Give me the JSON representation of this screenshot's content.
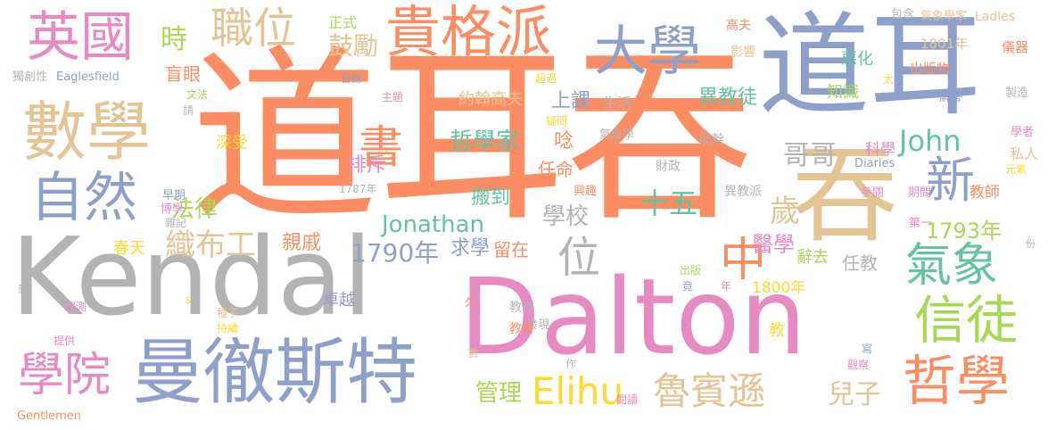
{
  "title": "word cloud",
  "palette": {
    "orange": "#fc8d62",
    "blue": "#8da0cb",
    "pink": "#e78ac3",
    "green": "#66c2a5",
    "yellow": "#ffd92f",
    "tan": "#e5c494",
    "gray": "#b3b3b3",
    "lime": "#a6d854"
  },
  "words": [
    {
      "text": "道耳吞",
      "color": "#fc8d62"
    },
    {
      "text": "道耳",
      "color": "#8da0cb"
    },
    {
      "text": "Kendal",
      "color": "#b3b3b3"
    },
    {
      "text": "Dalton",
      "color": "#e78ac3"
    },
    {
      "text": "吞",
      "color": "#e5c494"
    },
    {
      "text": "曼徹斯特",
      "color": "#8da0cb"
    },
    {
      "text": "數學",
      "color": "#e5c494"
    },
    {
      "text": "貴格派",
      "color": "#fc8d62"
    },
    {
      "text": "英國",
      "color": "#e78ac3"
    },
    {
      "text": "大學",
      "color": "#8da0cb"
    },
    {
      "text": "自然",
      "color": "#8da0cb"
    },
    {
      "text": "職位",
      "color": "#e5c494"
    },
    {
      "text": "信徒",
      "color": "#a6d854"
    },
    {
      "text": "哲學",
      "color": "#fc8d62"
    },
    {
      "text": "學院",
      "color": "#e78ac3"
    },
    {
      "text": "氣象",
      "color": "#66c2a5"
    },
    {
      "text": "新",
      "color": "#8da0cb"
    },
    {
      "text": "Elihu",
      "color": "#ffd92f"
    },
    {
      "text": "魯賓遜",
      "color": "#e5c494"
    },
    {
      "text": "中",
      "color": "#fc8d62"
    },
    {
      "text": "位",
      "color": "#b3b3b3"
    },
    {
      "text": "書",
      "color": "#fc8d62"
    },
    {
      "text": "John",
      "color": "#66c2a5"
    },
    {
      "text": "十五",
      "color": "#66c2a5"
    },
    {
      "text": "Jonathan",
      "color": "#66c2a5"
    },
    {
      "text": "織布工",
      "color": "#e5c494"
    },
    {
      "text": "歲",
      "color": "#e5c494"
    },
    {
      "text": "哥哥",
      "color": "#b3b3b3"
    },
    {
      "text": "兒子",
      "color": "#e5c494"
    },
    {
      "text": "時",
      "color": "#a6d854"
    },
    {
      "text": "鼓勵",
      "color": "#e5c494"
    },
    {
      "text": "法律",
      "color": "#a6d854"
    },
    {
      "text": "1790年",
      "color": "#8da0cb"
    },
    {
      "text": "管理",
      "color": "#a6d854"
    },
    {
      "text": "哲學家",
      "color": "#66c2a5"
    },
    {
      "text": "學校",
      "color": "#b3b3b3"
    },
    {
      "text": "1793年",
      "color": "#a6d854"
    },
    {
      "text": "醫學",
      "color": "#e78ac3"
    },
    {
      "text": "親戚",
      "color": "#fc8d62"
    },
    {
      "text": "求學",
      "color": "#8da0cb"
    },
    {
      "text": "留在",
      "color": "#fc8d62"
    },
    {
      "text": "搬到",
      "color": "#66c2a5"
    },
    {
      "text": "排斥",
      "color": "#e78ac3"
    },
    {
      "text": "上課",
      "color": "#8da0cb"
    },
    {
      "text": "異教徒",
      "color": "#66c2a5"
    },
    {
      "text": "約翰高夫",
      "color": "#e5c494"
    },
    {
      "text": "任教",
      "color": "#b3b3b3"
    },
    {
      "text": "春天",
      "color": "#ffd92f"
    },
    {
      "text": "盲眼",
      "color": "#fc8d62"
    },
    {
      "text": "正式",
      "color": "#a6d854"
    },
    {
      "text": "深受",
      "color": "#ffd92f"
    },
    {
      "text": "卓越",
      "color": "#8da0cb"
    },
    {
      "text": "唸",
      "color": "#fc8d62"
    },
    {
      "text": "任命",
      "color": "#fc8d62"
    },
    {
      "text": "生活",
      "color": "#b3b3b3"
    },
    {
      "text": "知識",
      "color": "#a6d854"
    },
    {
      "text": "惡化",
      "color": "#66c2a5"
    },
    {
      "text": "私人",
      "color": "#e5c494"
    },
    {
      "text": "科學",
      "color": "#e78ac3"
    },
    {
      "text": "教師",
      "color": "#fc8d62"
    },
    {
      "text": "辭去",
      "color": "#a6d854"
    },
    {
      "text": "1800年",
      "color": "#ffd92f"
    },
    {
      "text": "1801年",
      "color": "#e5c494"
    },
    {
      "text": "出版物",
      "color": "#fc8d62"
    },
    {
      "text": "儀器",
      "color": "#fc8d62"
    },
    {
      "text": "高夫",
      "color": "#fc8d62"
    },
    {
      "text": "影響",
      "color": "#e5c494"
    },
    {
      "text": "Ladies",
      "color": "#e5c494"
    },
    {
      "text": "氣象學家",
      "color": "#e5c494"
    },
    {
      "text": "包含",
      "color": "#b3b3b3"
    },
    {
      "text": "Diaries",
      "color": "#8da0cb"
    },
    {
      "text": "Gentlemen",
      "color": "#fc8d62"
    },
    {
      "text": "Eaglesfield",
      "color": "#8da0cb"
    },
    {
      "text": "獨創性",
      "color": "#b3b3b3"
    },
    {
      "text": "財政",
      "color": "#b3b3b3"
    },
    {
      "text": "能幹",
      "color": "#b3b3b3"
    },
    {
      "text": "異教派",
      "color": "#b3b3b3"
    },
    {
      "text": "氣象學",
      "color": "#b3b3b3"
    },
    {
      "text": "教育",
      "color": "#b3b3b3"
    },
    {
      "text": "發現",
      "color": "#b3b3b3"
    },
    {
      "text": "興趣",
      "color": "#fc8d62"
    },
    {
      "text": "參閱",
      "color": "#e78ac3"
    },
    {
      "text": "期間",
      "color": "#e78ac3"
    },
    {
      "text": "第一",
      "color": "#e78ac3"
    },
    {
      "text": "學者",
      "color": "#e78ac3"
    },
    {
      "text": "元素",
      "color": "#ffd92f"
    },
    {
      "text": "製造",
      "color": "#b3b3b3"
    },
    {
      "text": "解答",
      "color": "#8da0cb"
    },
    {
      "text": "早期",
      "color": "#8da0cb"
    },
    {
      "text": "博學",
      "color": "#e78ac3"
    },
    {
      "text": "雜記",
      "color": "#b3b3b3"
    },
    {
      "text": "1787年",
      "color": "#b3b3b3"
    },
    {
      "text": "文法",
      "color": "#a6d854"
    },
    {
      "text": "請",
      "color": "#b3b3b3"
    },
    {
      "text": "日誌",
      "color": "#8da0cb"
    },
    {
      "text": "主題",
      "color": "#e78ac3"
    },
    {
      "text": "超過",
      "color": "#ffd92f"
    },
    {
      "text": "疑問",
      "color": "#ffd92f"
    },
    {
      "text": "觀測",
      "color": "#e78ac3"
    },
    {
      "text": "種子",
      "color": "#e5c494"
    },
    {
      "text": "持續",
      "color": "#ffd92f"
    },
    {
      "text": "提供",
      "color": "#e78ac3"
    },
    {
      "text": "教書",
      "color": "#fc8d62"
    },
    {
      "text": "閱讀",
      "color": "#e78ac3"
    },
    {
      "text": "觀察",
      "color": "#e78ac3"
    },
    {
      "text": "寫",
      "color": "#8da0cb"
    },
    {
      "text": "出版",
      "color": "#a6d854"
    },
    {
      "text": "竟",
      "color": "#8da0cb"
    },
    {
      "text": "年",
      "color": "#e78ac3"
    },
    {
      "text": "教",
      "color": "#ffd92f"
    },
    {
      "text": "份",
      "color": "#b3b3b3"
    },
    {
      "text": "感",
      "color": "#b3b3b3"
    },
    {
      "text": "s",
      "color": "#ffd92f"
    },
    {
      "text": "久",
      "color": "#fc8d62"
    },
    {
      "text": "數",
      "color": "#e5c494"
    },
    {
      "text": "作",
      "color": "#b3b3b3"
    },
    {
      "text": "太",
      "color": "#ffd92f"
    }
  ]
}
